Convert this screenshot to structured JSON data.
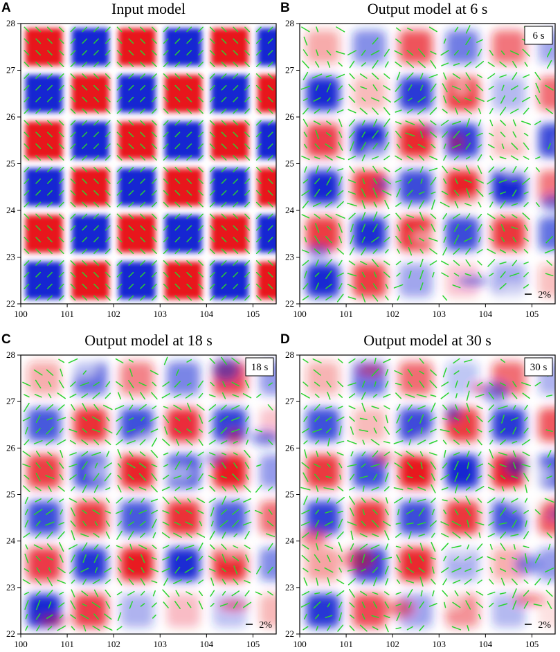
{
  "panels": [
    {
      "letter": "A",
      "title": "Input model",
      "period_tag": "",
      "scale_label": "",
      "kind": "input",
      "noise": 0.0
    },
    {
      "letter": "B",
      "title": "Output model at 6 s",
      "period_tag": "6 s",
      "scale_label": "2%",
      "kind": "output",
      "noise": 0.35
    },
    {
      "letter": "C",
      "title": "Output model at 18 s",
      "period_tag": "18 s",
      "scale_label": "2%",
      "kind": "output",
      "noise": 0.3
    },
    {
      "letter": "D",
      "title": "Output model at 30 s",
      "period_tag": "30 s",
      "scale_label": "2%",
      "kind": "output",
      "noise": 0.55
    }
  ],
  "axes": {
    "x_ticks": [
      "100",
      "101",
      "102",
      "103",
      "104",
      "105"
    ],
    "y_ticks": [
      "22",
      "23",
      "24",
      "25",
      "26",
      "27",
      "28"
    ],
    "xlim": [
      100,
      105.5
    ],
    "ylim": [
      22,
      28
    ]
  },
  "colors": {
    "positive": "#e8141e",
    "negative": "#1428d2",
    "neutral": "#ffffff",
    "bars": "#29d42e"
  }
}
